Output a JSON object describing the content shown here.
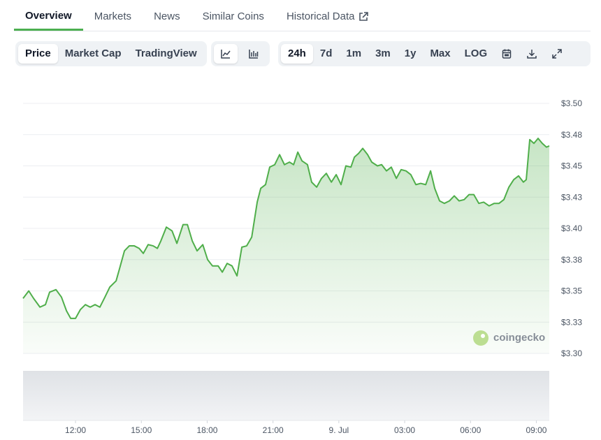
{
  "tabs": [
    "Overview",
    "Markets",
    "News",
    "Similar Coins",
    "Historical Data"
  ],
  "toolbar": {
    "views": [
      "Price",
      "Market Cap",
      "TradingView"
    ],
    "ranges": [
      "24h",
      "7d",
      "1m",
      "3m",
      "1y",
      "Max",
      "LOG"
    ]
  },
  "watermark": "coingecko",
  "chart_data": {
    "type": "line",
    "color": "#4fae4a",
    "grid": true,
    "x": [
      9.61,
      9.87,
      10.09,
      10.38,
      10.63,
      10.82,
      11.11,
      11.36,
      11.59,
      11.78,
      12.0,
      12.22,
      12.45,
      12.67,
      12.89,
      13.11,
      13.34,
      13.56,
      13.85,
      14.01,
      14.23,
      14.45,
      14.68,
      14.9,
      15.09,
      15.31,
      15.54,
      15.73,
      15.89,
      16.14,
      16.4,
      16.62,
      16.9,
      17.1,
      17.32,
      17.54,
      17.8,
      18.02,
      18.24,
      18.5,
      18.69,
      18.91,
      19.13,
      19.36,
      19.58,
      19.8,
      20.03,
      20.28,
      20.44,
      20.66,
      20.85,
      21.08,
      21.3,
      21.52,
      21.75,
      21.94,
      22.13,
      22.32,
      22.57,
      22.76,
      22.99,
      23.21,
      23.43,
      23.66,
      23.88,
      24.1,
      24.32,
      24.55,
      24.71,
      24.9,
      25.09,
      25.31,
      25.5,
      25.76,
      25.95,
      26.17,
      26.39,
      26.62,
      26.84,
      27.06,
      27.28,
      27.51,
      27.73,
      27.96,
      28.18,
      28.37,
      28.59,
      28.81,
      29.04,
      29.26,
      29.48,
      29.71,
      29.93,
      30.15,
      30.38,
      30.6,
      30.85,
      31.08,
      31.3,
      31.52,
      31.75,
      31.97,
      32.19,
      32.41,
      32.54,
      32.7,
      32.89,
      33.08,
      33.27,
      33.46,
      33.59
    ],
    "values": [
      3.344,
      3.35,
      3.344,
      3.337,
      3.339,
      3.349,
      3.351,
      3.345,
      3.334,
      3.328,
      3.328,
      3.335,
      3.339,
      3.337,
      3.339,
      3.337,
      3.345,
      3.353,
      3.358,
      3.368,
      3.382,
      3.386,
      3.386,
      3.384,
      3.38,
      3.387,
      3.386,
      3.384,
      3.39,
      3.401,
      3.398,
      3.388,
      3.403,
      3.403,
      3.39,
      3.382,
      3.387,
      3.375,
      3.37,
      3.37,
      3.365,
      3.372,
      3.37,
      3.362,
      3.385,
      3.386,
      3.393,
      3.421,
      3.432,
      3.435,
      3.449,
      3.451,
      3.459,
      3.451,
      3.453,
      3.451,
      3.461,
      3.454,
      3.451,
      3.437,
      3.433,
      3.44,
      3.444,
      3.437,
      3.443,
      3.435,
      3.45,
      3.449,
      3.457,
      3.46,
      3.464,
      3.459,
      3.453,
      3.45,
      3.451,
      3.446,
      3.449,
      3.44,
      3.447,
      3.446,
      3.443,
      3.435,
      3.436,
      3.435,
      3.446,
      3.432,
      3.422,
      3.42,
      3.422,
      3.426,
      3.422,
      3.423,
      3.427,
      3.427,
      3.42,
      3.421,
      3.418,
      3.42,
      3.42,
      3.423,
      3.433,
      3.439,
      3.442,
      3.437,
      3.439,
      3.471,
      3.468,
      3.472,
      3.468,
      3.465,
      3.466
    ],
    "xlim": [
      9.61,
      33.59
    ],
    "ylim": [
      3.3,
      3.5
    ],
    "xticks": [
      {
        "value": 12,
        "label": "12:00"
      },
      {
        "value": 15,
        "label": "15:00"
      },
      {
        "value": 18,
        "label": "18:00"
      },
      {
        "value": 21,
        "label": "21:00"
      },
      {
        "value": 24,
        "label": "9. Jul"
      },
      {
        "value": 27,
        "label": "03:00"
      },
      {
        "value": 30,
        "label": "06:00"
      },
      {
        "value": 33,
        "label": "09:00"
      }
    ],
    "yticks": [
      {
        "value": 3.3,
        "label": "$3.30"
      },
      {
        "value": 3.325,
        "label": "$3.33"
      },
      {
        "value": 3.35,
        "label": "$3.35"
      },
      {
        "value": 3.375,
        "label": "$3.38"
      },
      {
        "value": 3.4,
        "label": "$3.40"
      },
      {
        "value": 3.425,
        "label": "$3.43"
      },
      {
        "value": 3.45,
        "label": "$3.45"
      },
      {
        "value": 3.475,
        "label": "$3.48"
      },
      {
        "value": 3.5,
        "label": "$3.50"
      }
    ]
  }
}
